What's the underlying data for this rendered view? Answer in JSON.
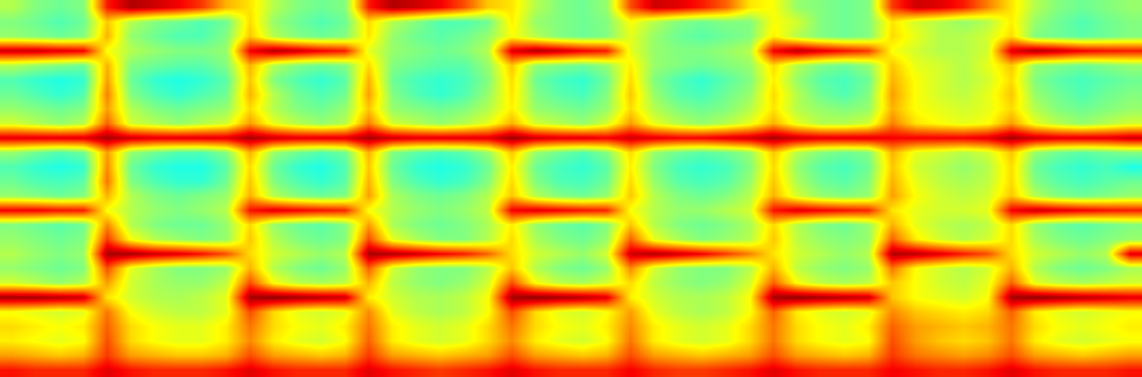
{
  "chart_data": {
    "type": "heatmap",
    "color": "Jet",
    "tick_labels": false,
    "zlim": [
      0,
      100
    ],
    "cells": [
      [
        55,
        50,
        48,
        50,
        85,
        95,
        92,
        88,
        82,
        70,
        65,
        55,
        50,
        48,
        50,
        85,
        95,
        92,
        88,
        80,
        68,
        65,
        55,
        50,
        48,
        52,
        80,
        92,
        90,
        85,
        78,
        65,
        62,
        52,
        50,
        48,
        50,
        82,
        92,
        90,
        85,
        75,
        65,
        55,
        50,
        48,
        50,
        52
      ],
      [
        50,
        48,
        45,
        48,
        68,
        55,
        50,
        48,
        45,
        48,
        66,
        52,
        48,
        45,
        48,
        66,
        55,
        50,
        45,
        45,
        48,
        64,
        52,
        50,
        48,
        50,
        62,
        55,
        50,
        48,
        50,
        50,
        62,
        58,
        50,
        48,
        50,
        65,
        58,
        55,
        52,
        55,
        64,
        52,
        48,
        45,
        48,
        50
      ],
      [
        52,
        50,
        48,
        50,
        70,
        52,
        48,
        45,
        45,
        50,
        68,
        55,
        50,
        48,
        50,
        65,
        52,
        48,
        46,
        48,
        52,
        62,
        55,
        50,
        48,
        50,
        60,
        52,
        48,
        46,
        48,
        50,
        64,
        55,
        50,
        48,
        50,
        66,
        60,
        55,
        55,
        58,
        66,
        50,
        48,
        46,
        48,
        50
      ],
      [
        92,
        92,
        90,
        88,
        62,
        55,
        52,
        50,
        50,
        52,
        88,
        95,
        92,
        88,
        85,
        60,
        52,
        50,
        48,
        50,
        55,
        90,
        95,
        92,
        88,
        85,
        60,
        52,
        50,
        50,
        52,
        55,
        88,
        94,
        90,
        86,
        82,
        62,
        58,
        55,
        55,
        58,
        90,
        95,
        92,
        88,
        86,
        85
      ],
      [
        55,
        52,
        50,
        48,
        70,
        50,
        48,
        46,
        46,
        50,
        70,
        55,
        50,
        48,
        50,
        66,
        50,
        48,
        46,
        46,
        52,
        68,
        52,
        50,
        48,
        52,
        64,
        52,
        50,
        48,
        50,
        52,
        66,
        55,
        50,
        48,
        52,
        68,
        60,
        58,
        55,
        60,
        68,
        52,
        50,
        48,
        50,
        52
      ],
      [
        45,
        42,
        40,
        42,
        72,
        48,
        42,
        40,
        42,
        46,
        68,
        50,
        45,
        42,
        46,
        70,
        48,
        44,
        42,
        44,
        50,
        66,
        48,
        44,
        42,
        48,
        66,
        50,
        45,
        42,
        46,
        50,
        64,
        52,
        46,
        44,
        48,
        70,
        62,
        58,
        55,
        58,
        66,
        50,
        46,
        44,
        46,
        48
      ],
      [
        48,
        45,
        42,
        45,
        75,
        50,
        45,
        42,
        45,
        48,
        70,
        55,
        48,
        45,
        48,
        72,
        50,
        45,
        42,
        45,
        52,
        65,
        50,
        46,
        44,
        50,
        68,
        52,
        46,
        44,
        48,
        52,
        66,
        55,
        48,
        45,
        50,
        72,
        62,
        58,
        56,
        60,
        68,
        52,
        48,
        45,
        48,
        50
      ],
      [
        52,
        50,
        48,
        50,
        72,
        55,
        50,
        48,
        50,
        52,
        66,
        55,
        50,
        48,
        52,
        68,
        52,
        50,
        48,
        50,
        55,
        64,
        52,
        50,
        48,
        52,
        66,
        55,
        50,
        48,
        50,
        55,
        65,
        55,
        52,
        50,
        52,
        70,
        62,
        60,
        58,
        60,
        66,
        55,
        50,
        48,
        50,
        52
      ],
      [
        58,
        55,
        52,
        55,
        78,
        58,
        55,
        52,
        55,
        58,
        72,
        60,
        55,
        52,
        55,
        75,
        58,
        55,
        52,
        55,
        60,
        70,
        58,
        55,
        52,
        58,
        72,
        60,
        55,
        52,
        55,
        60,
        70,
        60,
        55,
        55,
        58,
        75,
        65,
        62,
        60,
        62,
        72,
        60,
        55,
        52,
        55,
        58
      ],
      [
        90,
        90,
        90,
        90,
        96,
        92,
        90,
        90,
        90,
        90,
        96,
        92,
        90,
        90,
        90,
        96,
        92,
        90,
        90,
        90,
        90,
        97,
        92,
        90,
        90,
        88,
        92,
        90,
        88,
        88,
        90,
        92,
        96,
        92,
        90,
        90,
        90,
        88,
        88,
        88,
        88,
        90,
        96,
        92,
        90,
        90,
        90,
        92
      ],
      [
        52,
        48,
        45,
        48,
        72,
        52,
        48,
        45,
        45,
        50,
        70,
        52,
        48,
        45,
        48,
        70,
        50,
        46,
        44,
        46,
        52,
        68,
        52,
        48,
        45,
        50,
        66,
        52,
        48,
        46,
        48,
        52,
        68,
        55,
        50,
        48,
        50,
        70,
        60,
        58,
        55,
        58,
        68,
        52,
        48,
        46,
        48,
        50
      ],
      [
        45,
        42,
        40,
        42,
        74,
        48,
        42,
        40,
        40,
        46,
        66,
        48,
        42,
        40,
        45,
        68,
        48,
        42,
        40,
        42,
        48,
        64,
        48,
        44,
        42,
        46,
        64,
        50,
        44,
        42,
        44,
        50,
        66,
        52,
        46,
        44,
        48,
        68,
        58,
        55,
        52,
        55,
        66,
        48,
        44,
        42,
        44,
        40
      ],
      [
        48,
        45,
        44,
        46,
        76,
        50,
        45,
        42,
        42,
        48,
        68,
        50,
        45,
        42,
        46,
        70,
        50,
        45,
        42,
        44,
        50,
        66,
        50,
        45,
        44,
        48,
        66,
        52,
        46,
        44,
        46,
        52,
        68,
        54,
        48,
        46,
        50,
        70,
        60,
        56,
        54,
        56,
        66,
        50,
        46,
        44,
        46,
        48
      ],
      [
        52,
        50,
        48,
        50,
        70,
        55,
        50,
        48,
        50,
        52,
        70,
        55,
        50,
        48,
        50,
        72,
        54,
        50,
        48,
        50,
        55,
        68,
        55,
        50,
        48,
        52,
        68,
        55,
        50,
        48,
        50,
        55,
        70,
        58,
        52,
        50,
        52,
        72,
        62,
        58,
        56,
        58,
        68,
        55,
        50,
        48,
        50,
        52
      ],
      [
        88,
        88,
        86,
        85,
        62,
        55,
        52,
        50,
        52,
        55,
        86,
        90,
        88,
        86,
        84,
        62,
        55,
        52,
        50,
        52,
        56,
        88,
        90,
        88,
        86,
        84,
        62,
        55,
        52,
        52,
        55,
        58,
        86,
        90,
        88,
        86,
        84,
        65,
        60,
        58,
        58,
        60,
        88,
        92,
        90,
        88,
        86,
        85
      ],
      [
        50,
        48,
        46,
        48,
        74,
        55,
        50,
        48,
        48,
        52,
        66,
        52,
        48,
        46,
        50,
        72,
        54,
        50,
        48,
        50,
        54,
        64,
        52,
        48,
        46,
        50,
        68,
        55,
        50,
        48,
        50,
        54,
        66,
        55,
        50,
        48,
        52,
        70,
        60,
        56,
        54,
        56,
        66,
        52,
        48,
        46,
        48,
        50
      ],
      [
        52,
        50,
        48,
        50,
        82,
        62,
        55,
        52,
        50,
        52,
        68,
        55,
        50,
        48,
        50,
        80,
        60,
        54,
        50,
        50,
        55,
        66,
        54,
        50,
        48,
        52,
        78,
        60,
        54,
        50,
        52,
        55,
        68,
        56,
        52,
        50,
        52,
        78,
        64,
        58,
        55,
        58,
        66,
        54,
        50,
        48,
        50,
        52
      ],
      [
        55,
        52,
        50,
        52,
        96,
        96,
        92,
        90,
        86,
        80,
        66,
        58,
        55,
        52,
        55,
        96,
        95,
        92,
        88,
        85,
        78,
        66,
        58,
        55,
        52,
        58,
        92,
        95,
        92,
        88,
        82,
        75,
        65,
        58,
        55,
        52,
        55,
        95,
        94,
        90,
        85,
        80,
        66,
        58,
        55,
        52,
        55,
        90
      ],
      [
        52,
        50,
        48,
        50,
        80,
        60,
        54,
        50,
        50,
        52,
        70,
        55,
        50,
        48,
        52,
        78,
        58,
        52,
        50,
        50,
        55,
        68,
        55,
        50,
        48,
        52,
        74,
        58,
        52,
        50,
        50,
        55,
        70,
        56,
        52,
        50,
        52,
        76,
        62,
        58,
        55,
        58,
        70,
        55,
        50,
        48,
        50,
        54
      ],
      [
        58,
        55,
        52,
        55,
        72,
        58,
        54,
        52,
        52,
        56,
        80,
        62,
        56,
        54,
        56,
        70,
        56,
        52,
        50,
        52,
        58,
        80,
        62,
        56,
        54,
        58,
        66,
        56,
        52,
        50,
        52,
        58,
        78,
        62,
        56,
        54,
        56,
        68,
        62,
        58,
        56,
        60,
        78,
        60,
        56,
        54,
        56,
        58
      ],
      [
        96,
        96,
        94,
        92,
        65,
        58,
        55,
        54,
        56,
        60,
        96,
        98,
        96,
        94,
        92,
        64,
        58,
        55,
        54,
        56,
        62,
        96,
        98,
        96,
        94,
        90,
        64,
        58,
        55,
        54,
        56,
        62,
        96,
        98,
        96,
        94,
        92,
        68,
        62,
        60,
        58,
        62,
        96,
        98,
        96,
        94,
        92,
        90
      ],
      [
        62,
        60,
        58,
        60,
        76,
        62,
        58,
        56,
        56,
        60,
        80,
        66,
        60,
        58,
        60,
        74,
        60,
        56,
        54,
        56,
        62,
        80,
        66,
        60,
        58,
        62,
        72,
        60,
        56,
        54,
        56,
        62,
        78,
        64,
        60,
        58,
        60,
        74,
        68,
        66,
        64,
        66,
        78,
        64,
        60,
        58,
        60,
        62
      ],
      [
        66,
        64,
        62,
        64,
        78,
        66,
        62,
        60,
        60,
        64,
        76,
        66,
        62,
        60,
        64,
        76,
        64,
        60,
        58,
        60,
        66,
        76,
        66,
        62,
        60,
        64,
        74,
        64,
        60,
        58,
        60,
        66,
        76,
        66,
        62,
        60,
        64,
        78,
        72,
        70,
        68,
        70,
        76,
        66,
        62,
        60,
        62,
        64
      ],
      [
        64,
        62,
        60,
        62,
        80,
        66,
        62,
        60,
        60,
        64,
        74,
        64,
        60,
        58,
        62,
        78,
        64,
        60,
        58,
        60,
        66,
        74,
        64,
        60,
        58,
        62,
        76,
        64,
        60,
        58,
        60,
        66,
        76,
        66,
        62,
        60,
        62,
        80,
        72,
        68,
        66,
        68,
        76,
        64,
        60,
        58,
        60,
        62
      ],
      [
        72,
        70,
        68,
        70,
        82,
        72,
        70,
        68,
        68,
        70,
        80,
        72,
        70,
        68,
        70,
        82,
        72,
        70,
        68,
        70,
        72,
        80,
        72,
        70,
        68,
        70,
        80,
        72,
        70,
        68,
        70,
        72,
        80,
        72,
        70,
        68,
        70,
        82,
        76,
        74,
        72,
        74,
        80,
        72,
        70,
        68,
        70,
        72
      ],
      [
        86,
        84,
        84,
        84,
        90,
        86,
        84,
        84,
        84,
        86,
        90,
        86,
        84,
        84,
        84,
        90,
        86,
        84,
        82,
        84,
        86,
        90,
        86,
        84,
        84,
        84,
        88,
        84,
        82,
        82,
        84,
        86,
        90,
        86,
        84,
        84,
        84,
        88,
        86,
        84,
        84,
        86,
        90,
        86,
        84,
        84,
        84,
        86
      ]
    ]
  }
}
